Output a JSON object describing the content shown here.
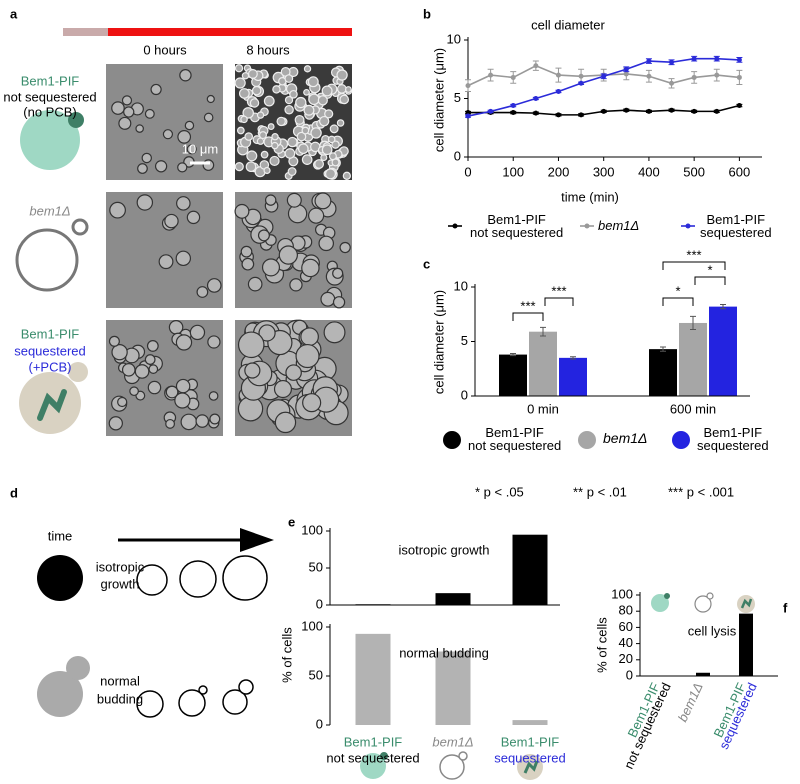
{
  "panels": [
    "a",
    "b",
    "c",
    "d",
    "e",
    "f"
  ],
  "panel_a": {
    "timepoints": [
      "0 hours",
      "8 hours"
    ],
    "scale_bar": "10 μm",
    "rows": [
      [
        "Bem1-PIF",
        "not sequestered",
        "(no PCB)"
      ],
      [
        "bem1Δ"
      ],
      [
        "Bem1-PIF",
        "sequestered",
        "(+PCB)"
      ]
    ]
  },
  "panel_d": {
    "time": "time",
    "rows": [
      [
        "isotropic",
        "growth"
      ],
      [
        "normal",
        "budding"
      ]
    ]
  },
  "chart_data": [
    {
      "type": "line",
      "title": "cell diameter",
      "xlabel": "time (min)",
      "ylabel": "cell diameter (μm)",
      "x": [
        0,
        50,
        100,
        150,
        200,
        250,
        300,
        350,
        400,
        450,
        500,
        550,
        600
      ],
      "xlim": [
        0,
        650
      ],
      "xticks": [
        0,
        100,
        200,
        300,
        400,
        500,
        600
      ],
      "ylim": [
        0,
        10
      ],
      "yticks": [
        0,
        5,
        10
      ],
      "series": [
        {
          "name": "Bem1-PIF\nnot sequestered",
          "color": "#000000",
          "values": [
            3.8,
            3.8,
            3.8,
            3.75,
            3.6,
            3.6,
            3.9,
            4.0,
            3.9,
            4.0,
            3.9,
            3.9,
            4.4
          ],
          "errors": [
            0.1,
            0.1,
            0.1,
            0.1,
            0.1,
            0.1,
            0.1,
            0.1,
            0.1,
            0.1,
            0.1,
            0.1,
            0.1
          ]
        },
        {
          "name": "bem1Δ",
          "color": "#999999",
          "values": [
            6.1,
            7.0,
            6.8,
            7.8,
            7.0,
            6.9,
            7.0,
            7.1,
            6.9,
            6.3,
            6.8,
            7.0,
            6.8
          ],
          "errors": [
            0.5,
            0.5,
            0.5,
            0.4,
            0.6,
            0.6,
            0.5,
            0.5,
            0.5,
            0.4,
            0.5,
            0.5,
            0.6
          ]
        },
        {
          "name": "Bem1-PIF\nsequestered",
          "color": "#2b2bd9",
          "values": [
            3.5,
            3.9,
            4.4,
            5.0,
            5.6,
            6.3,
            6.9,
            7.5,
            8.2,
            8.1,
            8.4,
            8.4,
            8.3
          ],
          "errors": [
            0.1,
            0.1,
            0.1,
            0.1,
            0.1,
            0.1,
            0.2,
            0.2,
            0.2,
            0.2,
            0.2,
            0.2,
            0.2
          ]
        }
      ]
    },
    {
      "type": "bar",
      "ylabel": "cell diameter (μm)",
      "categories": [
        "0 min",
        "600 min"
      ],
      "ylim": [
        0,
        10
      ],
      "yticks": [
        0,
        5,
        10
      ],
      "series": [
        {
          "name": "Bem1-PIF\nnot sequestered",
          "color": "#000000",
          "values": [
            3.8,
            4.3
          ],
          "errors": [
            0.1,
            0.2
          ]
        },
        {
          "name": "bem1Δ",
          "color": "#a6a6a6",
          "values": [
            5.9,
            6.7
          ],
          "errors": [
            0.4,
            0.6
          ]
        },
        {
          "name": "Bem1-PIF\nsequestered",
          "color": "#2323e0",
          "values": [
            3.5,
            8.2
          ],
          "errors": [
            0.1,
            0.2
          ]
        }
      ],
      "annotations": [
        "***",
        "***",
        "*",
        "*",
        "***"
      ],
      "footnotes": [
        "* p < .05",
        "** p < .01",
        "*** p < .001"
      ]
    },
    {
      "type": "bar",
      "title": "isotropic growth",
      "ylabel": "% of cells",
      "values": [
        1,
        16,
        95
      ],
      "color": "#000000",
      "ylim": [
        0,
        100
      ],
      "yticks": [
        0,
        50,
        100
      ]
    },
    {
      "type": "bar",
      "title": "normal budding",
      "categories": [
        [
          "Bem1-PIF",
          "not sequestered"
        ],
        [
          "bem1Δ"
        ],
        [
          "Bem1-PIF",
          "sequestered"
        ]
      ],
      "values": [
        93,
        75,
        5
      ],
      "color": "#b3b3b3",
      "ylim": [
        0,
        100
      ],
      "yticks": [
        0,
        50,
        100
      ]
    },
    {
      "type": "bar",
      "title": "cell lysis",
      "ylabel": "% of cells",
      "categories": [
        [
          "Bem1-PIF",
          "not sequestered"
        ],
        [
          "bem1Δ"
        ],
        [
          "Bem1-PIF",
          "sequestered"
        ]
      ],
      "values": [
        0,
        4,
        77
      ],
      "color": "#000000",
      "ylim": [
        0,
        100
      ],
      "yticks": [
        0,
        20,
        40,
        60,
        80,
        100
      ]
    }
  ]
}
